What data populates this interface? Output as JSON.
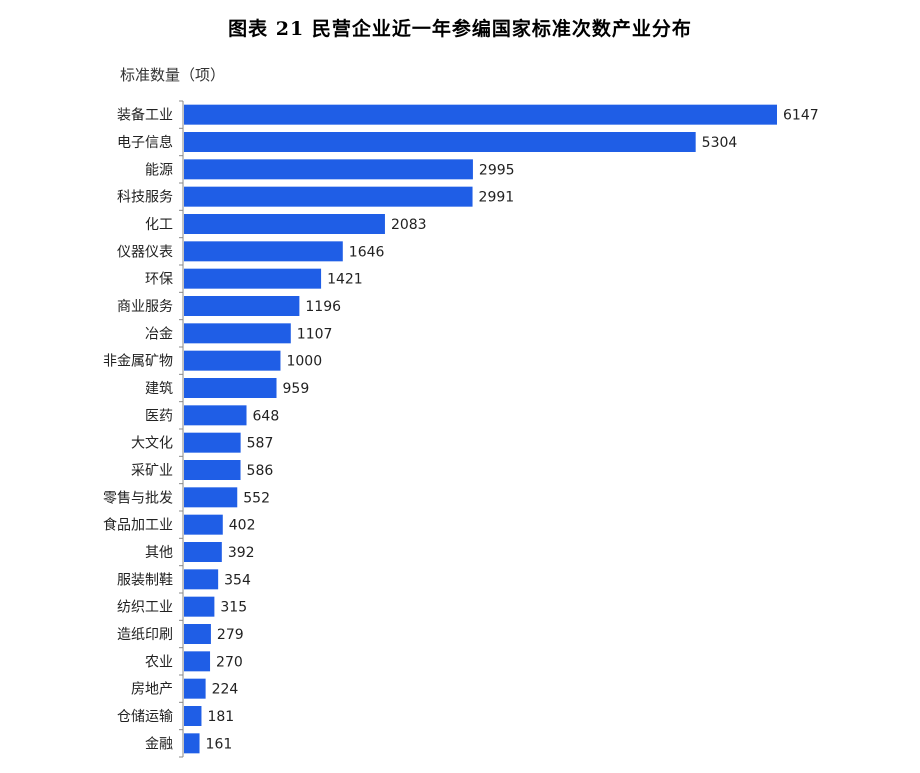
{
  "title": "图表 21  民营企业近一年参编国家标准次数产业分布",
  "chart_data": {
    "type": "bar",
    "orientation": "horizontal",
    "title": "图表 21  民营企业近一年参编国家标准次数产业分布",
    "ylabel": "标准数量（项）",
    "categories": [
      "装备工业",
      "电子信息",
      "能源",
      "科技服务",
      "化工",
      "仪器仪表",
      "环保",
      "商业服务",
      "冶金",
      "非金属矿物",
      "建筑",
      "医药",
      "大文化",
      "采矿业",
      "零售与批发",
      "食品加工业",
      "其他",
      "服装制鞋",
      "纺织工业",
      "造纸印刷",
      "农业",
      "房地产",
      "仓储运输",
      "金融"
    ],
    "values": [
      6147,
      5304,
      2995,
      2991,
      2083,
      1646,
      1421,
      1196,
      1107,
      1000,
      959,
      648,
      587,
      586,
      552,
      402,
      392,
      354,
      315,
      279,
      270,
      224,
      181,
      161
    ],
    "bar_color": "#1f5ee6",
    "data_labels": true,
    "grid": false
  }
}
